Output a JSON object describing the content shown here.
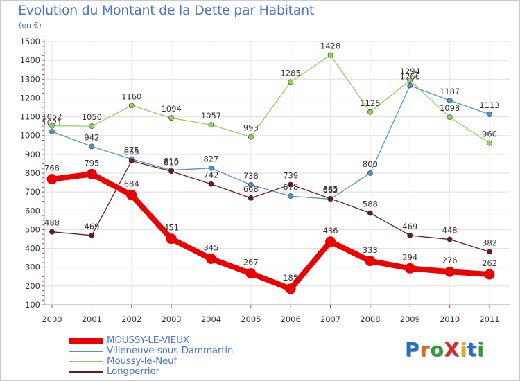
{
  "title": "Evolution du Montant de la Dette par Habitant",
  "subtitle": "(en €)",
  "chart_data": {
    "type": "line",
    "title": "Evolution du Montant de la Dette par Habitant",
    "subtitle": "(en €)",
    "x": [
      "2000",
      "2001",
      "2002",
      "2003",
      "2004",
      "2005",
      "2006",
      "2007",
      "2008",
      "2009",
      "2010",
      "2011"
    ],
    "ylim": [
      100,
      1500
    ],
    "yticks": [
      100,
      200,
      300,
      400,
      500,
      600,
      700,
      800,
      900,
      1000,
      1100,
      1200,
      1300,
      1400,
      1500
    ],
    "grid": true,
    "legend_position": "bottom",
    "series": [
      {
        "name": "MOUSSY-LE-VIEUX",
        "color": "#ee0000",
        "bold": true,
        "values": [
          768,
          795,
          684,
          451,
          345,
          267,
          185,
          436,
          333,
          294,
          276,
          262
        ]
      },
      {
        "name": "Villeneuve-sous-Dammartin",
        "color": "#4f92d6",
        "values": [
          1021,
          942,
          875,
          816,
          827,
          738,
          678,
          662,
          800,
          1266,
          1187,
          1113
        ]
      },
      {
        "name": "Moussy-le-Neuf",
        "color": "#8cd35a",
        "values": [
          1052,
          1050,
          1160,
          1094,
          1057,
          993,
          1285,
          1428,
          1125,
          1294,
          1098,
          960
        ]
      },
      {
        "name": "Longperrier",
        "color": "#6b1a1a",
        "values": [
          488,
          469,
          865,
          810,
          742,
          668,
          739,
          665,
          588,
          469,
          448,
          382
        ]
      }
    ]
  },
  "logo": {
    "text": "ProXiti",
    "colors": [
      "#1e6fc8",
      "#e46a12",
      "#2b9d3a",
      "#d72a2a",
      "#e0b010",
      "#1e6fc8",
      "#2b9d3a"
    ]
  }
}
